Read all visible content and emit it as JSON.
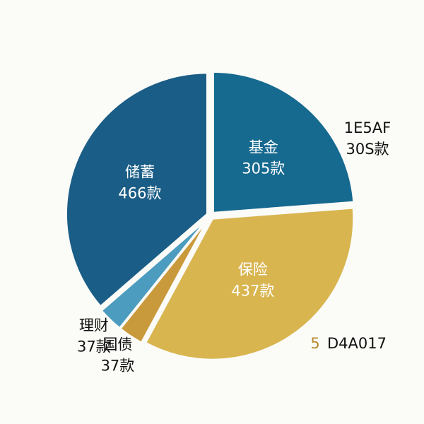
{
  "chart_data": {
    "type": "pie",
    "categories": [
      "基金",
      "保险",
      "国债",
      "理财",
      "储蓄"
    ],
    "values": [
      305,
      437,
      37,
      37,
      466
    ],
    "value_labels": [
      "305款",
      "437款",
      "37款",
      "37款",
      "466款"
    ],
    "colors": [
      "#16698f",
      "#d9b550",
      "#c99a3c",
      "#4b9cbf",
      "#1a5d86"
    ],
    "annotations": [
      "1E5AF",
      "30S款",
      "5",
      "D4A017"
    ]
  }
}
